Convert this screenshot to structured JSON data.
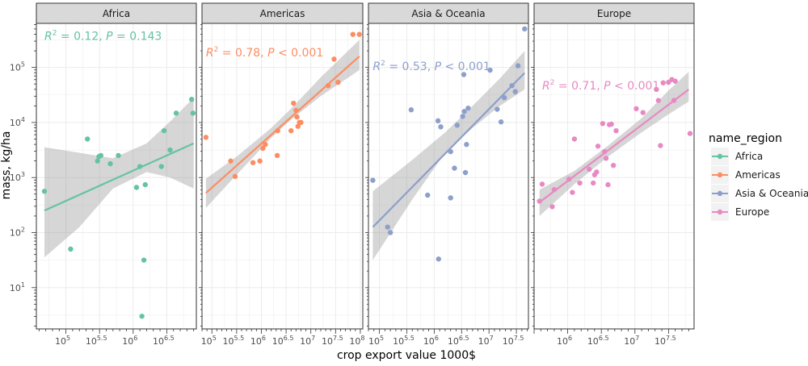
{
  "chart_data": {
    "type": "scatter",
    "xlabel": "crop export value 1000$",
    "ylabel": "mass, kg/ha",
    "x_scale": "log10",
    "y_scale": "log10",
    "y_ticks": [
      10,
      100,
      1000,
      10000,
      100000
    ],
    "y_tick_labels": [
      [
        "10",
        "1"
      ],
      [
        "10",
        "2"
      ],
      [
        "10",
        "3"
      ],
      [
        "10",
        "4"
      ],
      [
        "10",
        "5"
      ]
    ],
    "y_range_log10": [
      0.25,
      5.8
    ],
    "legend": {
      "title": "name_region",
      "placement": "right",
      "entries": [
        "Africa",
        "Americas",
        "Asia & Oceania",
        "Europe"
      ]
    },
    "panels": [
      {
        "name": "Africa",
        "color": "#66c2a5",
        "annotation": {
          "r2_symbol": "R",
          "r2_exp": "2",
          "r2_value": " = 0.12, ",
          "p_symbol": "P",
          "p_value": " = 0.143"
        },
        "annotation_pos_log": {
          "x": 4.68,
          "y": 5.5
        },
        "x_range_log10": [
          4.56,
          6.94
        ],
        "x_ticks": [
          {
            "base": "10",
            "exp": "5",
            "log": 5
          },
          {
            "base": "10",
            "exp": "5.5",
            "log": 5.5
          },
          {
            "base": "10",
            "exp": "6",
            "log": 6
          },
          {
            "base": "10",
            "exp": "6.5",
            "log": 6.5
          }
        ],
        "fit": {
          "x0": 4.68,
          "y0": 2.4,
          "x1": 6.9,
          "y1": 3.62
        },
        "band": [
          [
            4.68,
            1.55,
            3.55
          ],
          [
            5.2,
            2.1,
            3.45
          ],
          [
            5.7,
            2.8,
            3.35
          ],
          [
            6.2,
            3.1,
            3.62
          ],
          [
            6.55,
            3.0,
            4.02
          ],
          [
            6.9,
            2.8,
            4.45
          ]
        ],
        "points": [
          [
            4.68,
            2.75
          ],
          [
            5.07,
            1.7
          ],
          [
            5.32,
            3.7
          ],
          [
            5.47,
            3.3
          ],
          [
            5.49,
            3.38
          ],
          [
            5.52,
            3.4
          ],
          [
            5.66,
            3.25
          ],
          [
            5.78,
            3.4
          ],
          [
            6.05,
            2.82
          ],
          [
            6.1,
            3.2
          ],
          [
            6.13,
            0.48
          ],
          [
            6.16,
            1.5
          ],
          [
            6.18,
            2.87
          ],
          [
            6.42,
            3.2
          ],
          [
            6.46,
            3.85
          ],
          [
            6.55,
            3.5
          ],
          [
            6.64,
            4.17
          ],
          [
            6.87,
            4.42
          ],
          [
            6.89,
            4.17
          ]
        ]
      },
      {
        "name": "Americas",
        "color": "#fc8d62",
        "annotation": {
          "r2_symbol": "R",
          "r2_exp": "2",
          "r2_value": " = 0.78, ",
          "p_symbol": "P",
          "p_value": " < 0.001"
        },
        "annotation_pos_log": {
          "x": 4.88,
          "y": 5.2
        },
        "x_range_log10": [
          4.8,
          8.05
        ],
        "x_ticks": [
          {
            "base": "10",
            "exp": "5",
            "log": 5
          },
          {
            "base": "10",
            "exp": "5.5",
            "log": 5.5
          },
          {
            "base": "10",
            "exp": "6",
            "log": 6
          },
          {
            "base": "10",
            "exp": "6.5",
            "log": 6.5
          },
          {
            "base": "10",
            "exp": "7",
            "log": 7
          },
          {
            "base": "10",
            "exp": "7.5",
            "log": 7.5
          },
          {
            "base": "10",
            "exp": "8",
            "log": 8
          }
        ],
        "fit": {
          "x0": 4.88,
          "y0": 2.72,
          "x1": 7.98,
          "y1": 5.2
        },
        "band": [
          [
            4.88,
            2.45,
            2.98
          ],
          [
            5.5,
            3.05,
            3.38
          ],
          [
            6.2,
            3.72,
            3.9
          ],
          [
            6.6,
            4.05,
            4.25
          ],
          [
            7.2,
            4.48,
            4.82
          ],
          [
            7.98,
            4.95,
            5.5
          ]
        ],
        "points": [
          [
            4.88,
            3.73
          ],
          [
            5.38,
            3.3
          ],
          [
            5.47,
            3.02
          ],
          [
            5.83,
            3.27
          ],
          [
            5.97,
            3.3
          ],
          [
            6.03,
            3.53
          ],
          [
            6.08,
            3.6
          ],
          [
            6.32,
            3.4
          ],
          [
            6.33,
            3.85
          ],
          [
            6.6,
            3.85
          ],
          [
            6.65,
            4.35
          ],
          [
            6.7,
            4.22
          ],
          [
            6.72,
            4.1
          ],
          [
            6.74,
            3.93
          ],
          [
            6.77,
            4.0
          ],
          [
            6.8,
            4.0
          ],
          [
            7.35,
            4.67
          ],
          [
            7.47,
            5.15
          ],
          [
            7.55,
            4.73
          ],
          [
            7.85,
            5.6
          ],
          [
            7.98,
            5.6
          ]
        ]
      },
      {
        "name": "Asia & Oceania",
        "color": "#8da0cb",
        "annotation": {
          "r2_symbol": "R",
          "r2_exp": "2",
          "r2_value": " = 0.53, ",
          "p_symbol": "P",
          "p_value": " < 0.001"
        },
        "annotation_pos_log": {
          "x": 4.88,
          "y": 4.95
        },
        "x_range_log10": [
          4.8,
          7.72
        ],
        "x_ticks": [
          {
            "base": "10",
            "exp": "5",
            "log": 5
          },
          {
            "base": "10",
            "exp": "5.5",
            "log": 5.5
          },
          {
            "base": "10",
            "exp": "6",
            "log": 6
          },
          {
            "base": "10",
            "exp": "6.5",
            "log": 6.5
          },
          {
            "base": "10",
            "exp": "7",
            "log": 7
          },
          {
            "base": "10",
            "exp": "7.5",
            "log": 7.5
          }
        ],
        "fit": {
          "x0": 4.88,
          "y0": 2.1,
          "x1": 7.65,
          "y1": 4.9
        },
        "band": [
          [
            4.88,
            1.5,
            2.75
          ],
          [
            5.6,
            2.6,
            3.32
          ],
          [
            6.2,
            3.45,
            3.82
          ],
          [
            6.7,
            3.9,
            4.3
          ],
          [
            7.2,
            4.3,
            4.8
          ],
          [
            7.65,
            4.6,
            5.3
          ]
        ],
        "points": [
          [
            4.88,
            2.95
          ],
          [
            5.15,
            2.1
          ],
          [
            5.2,
            2.0
          ],
          [
            5.58,
            4.23
          ],
          [
            5.88,
            2.68
          ],
          [
            6.07,
            4.03
          ],
          [
            6.08,
            1.52
          ],
          [
            6.12,
            3.92
          ],
          [
            6.3,
            2.63
          ],
          [
            6.3,
            3.47
          ],
          [
            6.37,
            3.17
          ],
          [
            6.42,
            3.95
          ],
          [
            6.52,
            4.11
          ],
          [
            6.55,
            4.2
          ],
          [
            6.57,
            3.09
          ],
          [
            6.59,
            3.6
          ],
          [
            6.62,
            4.26
          ],
          [
            6.54,
            4.87
          ],
          [
            7.02,
            4.95
          ],
          [
            7.15,
            4.24
          ],
          [
            7.22,
            4.01
          ],
          [
            7.28,
            4.45
          ],
          [
            7.42,
            4.67
          ],
          [
            7.48,
            4.56
          ],
          [
            7.53,
            5.03
          ],
          [
            7.65,
            5.7
          ]
        ]
      },
      {
        "name": "Europe",
        "color": "#e78ac3",
        "annotation": {
          "r2_symbol": "R",
          "r2_exp": "2",
          "r2_value": " = 0.71, ",
          "p_symbol": "P",
          "p_value": " < 0.001"
        },
        "annotation_pos_log": {
          "x": 5.62,
          "y": 4.6
        },
        "x_range_log10": [
          5.5,
          7.88
        ],
        "x_ticks": [
          {
            "base": "10",
            "exp": "6",
            "log": 6
          },
          {
            "base": "10",
            "exp": "6.5",
            "log": 6.5
          },
          {
            "base": "10",
            "exp": "7",
            "log": 7
          },
          {
            "base": "10",
            "exp": "7.5",
            "log": 7.5
          }
        ],
        "fit": {
          "x0": 5.58,
          "y0": 2.55,
          "x1": 7.8,
          "y1": 4.6
        },
        "band": [
          [
            5.58,
            2.3,
            2.78
          ],
          [
            6.1,
            2.88,
            3.12
          ],
          [
            6.6,
            3.38,
            3.58
          ],
          [
            7.1,
            3.82,
            4.08
          ],
          [
            7.5,
            4.15,
            4.58
          ],
          [
            7.8,
            4.38,
            4.92
          ]
        ],
        "points": [
          [
            5.58,
            2.57
          ],
          [
            5.62,
            2.88
          ],
          [
            5.77,
            2.47
          ],
          [
            5.8,
            2.78
          ],
          [
            6.02,
            2.97
          ],
          [
            6.07,
            2.73
          ],
          [
            6.1,
            3.7
          ],
          [
            6.18,
            2.9
          ],
          [
            6.32,
            3.15
          ],
          [
            6.38,
            2.9
          ],
          [
            6.4,
            3.05
          ],
          [
            6.43,
            3.1
          ],
          [
            6.45,
            3.57
          ],
          [
            6.52,
            3.98
          ],
          [
            6.55,
            3.47
          ],
          [
            6.57,
            3.35
          ],
          [
            6.6,
            2.87
          ],
          [
            6.62,
            3.96
          ],
          [
            6.65,
            3.97
          ],
          [
            6.68,
            3.22
          ],
          [
            6.72,
            3.85
          ],
          [
            7.02,
            4.25
          ],
          [
            7.12,
            4.18
          ],
          [
            7.32,
            4.6
          ],
          [
            7.35,
            4.4
          ],
          [
            7.38,
            3.58
          ],
          [
            7.42,
            4.72
          ],
          [
            7.5,
            4.73
          ],
          [
            7.55,
            4.78
          ],
          [
            7.58,
            4.4
          ],
          [
            7.6,
            4.75
          ],
          [
            7.82,
            3.8
          ]
        ]
      }
    ]
  }
}
